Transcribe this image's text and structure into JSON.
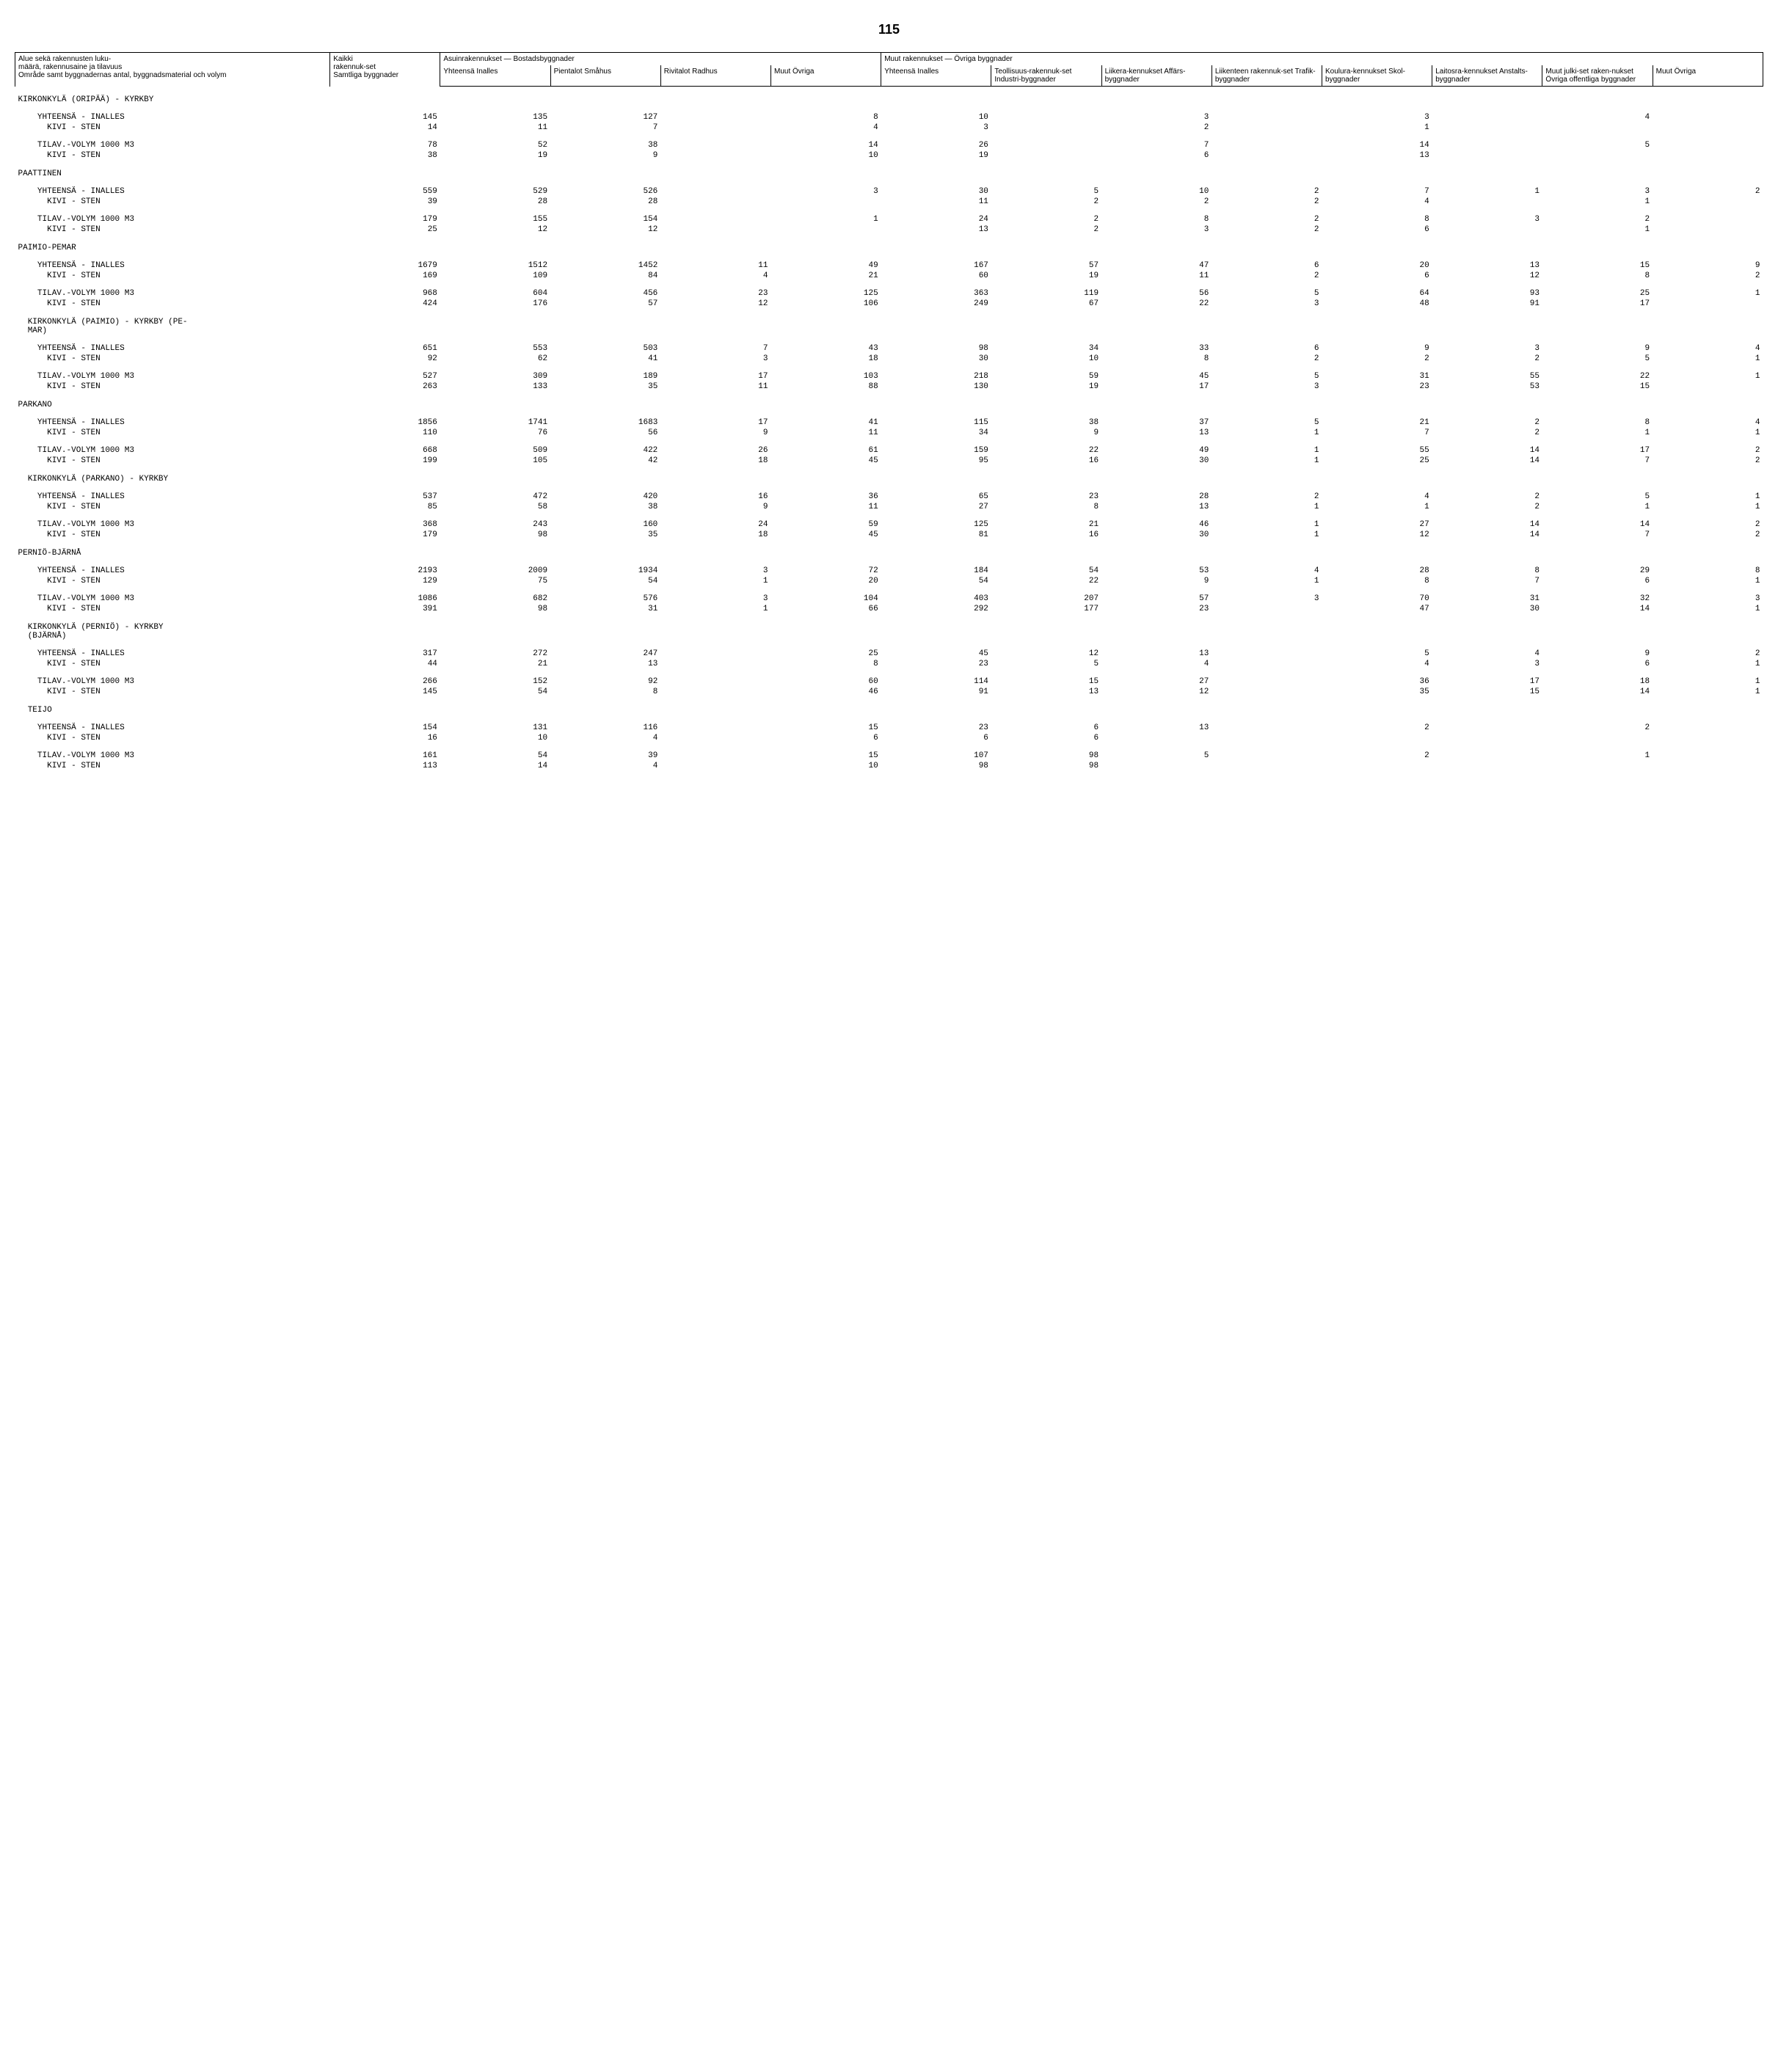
{
  "page_number": "115",
  "header": {
    "row_label_1": "Alue sekä rakennusten luku-",
    "row_label_2": "määrä, rakennusaine ja tilavuus",
    "row_label_3": "Område samt byggnadernas antal, byggnadsmaterial och volym",
    "kaikki_1": "Kaikki",
    "kaikki_2": "rakennuk-set",
    "kaikki_3": "Samtliga byggnader",
    "asuin": "Asuinrakennukset — Bostadsbyggnader",
    "muut": "Muut rakennukset — Övriga byggnader",
    "yht": "Yhteensä Inalles",
    "pientalot": "Pientalot Småhus",
    "rivitalot": "Rivitalot Radhus",
    "muut_ovriga": "Muut Övriga",
    "teollisuus": "Teollisuus-rakennuk-set Industri-byggnader",
    "liikera": "Liikera-kennukset Affärs-byggnader",
    "liikenteen": "Liikenteen rakennuk-set Trafik-byggnader",
    "koulura": "Koulura-kennukset Skol-byggnader",
    "laitosra": "Laitosra-kennukset Anstalts-byggnader",
    "muut_julki": "Muut julki-set raken-nukset Övriga offentliga byggnader",
    "muut_2": "Muut Övriga"
  },
  "sections": [
    {
      "title": "KIRKONKYLÄ (ORIPÄÄ) - KYRKBY",
      "rows": [
        {
          "l": "    YHTEENSÄ - INALLES",
          "v": [
            "145",
            "135",
            "127",
            "",
            "8",
            "10",
            "",
            "3",
            "",
            "3",
            "",
            "4",
            ""
          ]
        },
        {
          "l": "      KIVI - STEN",
          "v": [
            "14",
            "11",
            "7",
            "",
            "4",
            "3",
            "",
            "2",
            "",
            "1",
            "",
            "",
            ""
          ]
        },
        {
          "spacer": true
        },
        {
          "l": "    TILAV.-VOLYM 1000 M3",
          "v": [
            "78",
            "52",
            "38",
            "",
            "14",
            "26",
            "",
            "7",
            "",
            "14",
            "",
            "5",
            ""
          ]
        },
        {
          "l": "      KIVI - STEN",
          "v": [
            "38",
            "19",
            "9",
            "",
            "10",
            "19",
            "",
            "6",
            "",
            "13",
            "",
            "",
            ""
          ]
        }
      ]
    },
    {
      "title": "PAATTINEN",
      "rows": [
        {
          "l": "    YHTEENSÄ - INALLES",
          "v": [
            "559",
            "529",
            "526",
            "",
            "3",
            "30",
            "5",
            "10",
            "2",
            "7",
            "1",
            "3",
            "2"
          ]
        },
        {
          "l": "      KIVI - STEN",
          "v": [
            "39",
            "28",
            "28",
            "",
            "",
            "11",
            "2",
            "2",
            "2",
            "4",
            "",
            "1",
            ""
          ]
        },
        {
          "spacer": true
        },
        {
          "l": "    TILAV.-VOLYM 1000 M3",
          "v": [
            "179",
            "155",
            "154",
            "",
            "1",
            "24",
            "2",
            "8",
            "2",
            "8",
            "3",
            "2",
            ""
          ]
        },
        {
          "l": "      KIVI - STEN",
          "v": [
            "25",
            "12",
            "12",
            "",
            "",
            "13",
            "2",
            "3",
            "2",
            "6",
            "",
            "1",
            ""
          ]
        }
      ]
    },
    {
      "title": "PAIMIO-PEMAR",
      "rows": [
        {
          "l": "    YHTEENSÄ - INALLES",
          "v": [
            "1679",
            "1512",
            "1452",
            "11",
            "49",
            "167",
            "57",
            "47",
            "6",
            "20",
            "13",
            "15",
            "9"
          ]
        },
        {
          "l": "      KIVI - STEN",
          "v": [
            "169",
            "109",
            "84",
            "4",
            "21",
            "60",
            "19",
            "11",
            "2",
            "6",
            "12",
            "8",
            "2"
          ]
        },
        {
          "spacer": true
        },
        {
          "l": "    TILAV.-VOLYM 1000 M3",
          "v": [
            "968",
            "604",
            "456",
            "23",
            "125",
            "363",
            "119",
            "56",
            "5",
            "64",
            "93",
            "25",
            "1"
          ]
        },
        {
          "l": "      KIVI - STEN",
          "v": [
            "424",
            "176",
            "57",
            "12",
            "106",
            "249",
            "67",
            "22",
            "3",
            "48",
            "91",
            "17",
            ""
          ]
        }
      ]
    },
    {
      "title": "  KIRKONKYLÄ (PAIMIO) - KYRKBY (PE-\n  MAR)",
      "rows": [
        {
          "l": "    YHTEENSÄ - INALLES",
          "v": [
            "651",
            "553",
            "503",
            "7",
            "43",
            "98",
            "34",
            "33",
            "6",
            "9",
            "3",
            "9",
            "4"
          ]
        },
        {
          "l": "      KIVI - STEN",
          "v": [
            "92",
            "62",
            "41",
            "3",
            "18",
            "30",
            "10",
            "8",
            "2",
            "2",
            "2",
            "5",
            "1"
          ]
        },
        {
          "spacer": true
        },
        {
          "l": "    TILAV.-VOLYM 1000 M3",
          "v": [
            "527",
            "309",
            "189",
            "17",
            "103",
            "218",
            "59",
            "45",
            "5",
            "31",
            "55",
            "22",
            "1"
          ]
        },
        {
          "l": "      KIVI - STEN",
          "v": [
            "263",
            "133",
            "35",
            "11",
            "88",
            "130",
            "19",
            "17",
            "3",
            "23",
            "53",
            "15",
            ""
          ]
        }
      ]
    },
    {
      "title": "PARKANO",
      "rows": [
        {
          "l": "    YHTEENSÄ - INALLES",
          "v": [
            "1856",
            "1741",
            "1683",
            "17",
            "41",
            "115",
            "38",
            "37",
            "5",
            "21",
            "2",
            "8",
            "4"
          ]
        },
        {
          "l": "      KIVI - STEN",
          "v": [
            "110",
            "76",
            "56",
            "9",
            "11",
            "34",
            "9",
            "13",
            "1",
            "7",
            "2",
            "1",
            "1"
          ]
        },
        {
          "spacer": true
        },
        {
          "l": "    TILAV.-VOLYM 1000 M3",
          "v": [
            "668",
            "509",
            "422",
            "26",
            "61",
            "159",
            "22",
            "49",
            "1",
            "55",
            "14",
            "17",
            "2"
          ]
        },
        {
          "l": "      KIVI - STEN",
          "v": [
            "199",
            "105",
            "42",
            "18",
            "45",
            "95",
            "16",
            "30",
            "1",
            "25",
            "14",
            "7",
            "2"
          ]
        }
      ]
    },
    {
      "title": "  KIRKONKYLÄ (PARKANO) - KYRKBY",
      "rows": [
        {
          "l": "    YHTEENSÄ - INALLES",
          "v": [
            "537",
            "472",
            "420",
            "16",
            "36",
            "65",
            "23",
            "28",
            "2",
            "4",
            "2",
            "5",
            "1"
          ]
        },
        {
          "l": "      KIVI - STEN",
          "v": [
            "85",
            "58",
            "38",
            "9",
            "11",
            "27",
            "8",
            "13",
            "1",
            "1",
            "2",
            "1",
            "1"
          ]
        },
        {
          "spacer": true
        },
        {
          "l": "    TILAV.-VOLYM 1000 M3",
          "v": [
            "368",
            "243",
            "160",
            "24",
            "59",
            "125",
            "21",
            "46",
            "1",
            "27",
            "14",
            "14",
            "2"
          ]
        },
        {
          "l": "      KIVI - STEN",
          "v": [
            "179",
            "98",
            "35",
            "18",
            "45",
            "81",
            "16",
            "30",
            "1",
            "12",
            "14",
            "7",
            "2"
          ]
        }
      ]
    },
    {
      "title": "PERNIÖ-BJÄRNÅ",
      "rows": [
        {
          "l": "    YHTEENSÄ - INALLES",
          "v": [
            "2193",
            "2009",
            "1934",
            "3",
            "72",
            "184",
            "54",
            "53",
            "4",
            "28",
            "8",
            "29",
            "8"
          ]
        },
        {
          "l": "      KIVI - STEN",
          "v": [
            "129",
            "75",
            "54",
            "1",
            "20",
            "54",
            "22",
            "9",
            "1",
            "8",
            "7",
            "6",
            "1"
          ]
        },
        {
          "spacer": true
        },
        {
          "l": "    TILAV.-VOLYM 1000 M3",
          "v": [
            "1086",
            "682",
            "576",
            "3",
            "104",
            "403",
            "207",
            "57",
            "3",
            "70",
            "31",
            "32",
            "3"
          ]
        },
        {
          "l": "      KIVI - STEN",
          "v": [
            "391",
            "98",
            "31",
            "1",
            "66",
            "292",
            "177",
            "23",
            "",
            "47",
            "30",
            "14",
            "1"
          ]
        }
      ]
    },
    {
      "title": "  KIRKONKYLÄ (PERNIÖ) - KYRKBY\n  (BJÄRNÅ)",
      "rows": [
        {
          "l": "    YHTEENSÄ - INALLES",
          "v": [
            "317",
            "272",
            "247",
            "",
            "25",
            "45",
            "12",
            "13",
            "",
            "5",
            "4",
            "9",
            "2"
          ]
        },
        {
          "l": "      KIVI - STEN",
          "v": [
            "44",
            "21",
            "13",
            "",
            "8",
            "23",
            "5",
            "4",
            "",
            "4",
            "3",
            "6",
            "1"
          ]
        },
        {
          "spacer": true
        },
        {
          "l": "    TILAV.-VOLYM 1000 M3",
          "v": [
            "266",
            "152",
            "92",
            "",
            "60",
            "114",
            "15",
            "27",
            "",
            "36",
            "17",
            "18",
            "1"
          ]
        },
        {
          "l": "      KIVI - STEN",
          "v": [
            "145",
            "54",
            "8",
            "",
            "46",
            "91",
            "13",
            "12",
            "",
            "35",
            "15",
            "14",
            "1"
          ]
        }
      ]
    },
    {
      "title": "  TEIJO",
      "rows": [
        {
          "l": "    YHTEENSÄ - INALLES",
          "v": [
            "154",
            "131",
            "116",
            "",
            "15",
            "23",
            "6",
            "13",
            "",
            "2",
            "",
            "2",
            ""
          ]
        },
        {
          "l": "      KIVI - STEN",
          "v": [
            "16",
            "10",
            "4",
            "",
            "6",
            "6",
            "6",
            "",
            "",
            "",
            "",
            "",
            ""
          ]
        },
        {
          "spacer": true
        },
        {
          "l": "    TILAV.-VOLYM 1000 M3",
          "v": [
            "161",
            "54",
            "39",
            "",
            "15",
            "107",
            "98",
            "5",
            "",
            "2",
            "",
            "1",
            ""
          ]
        },
        {
          "l": "      KIVI - STEN",
          "v": [
            "113",
            "14",
            "4",
            "",
            "10",
            "98",
            "98",
            "",
            "",
            "",
            "",
            "",
            ""
          ]
        }
      ]
    }
  ]
}
